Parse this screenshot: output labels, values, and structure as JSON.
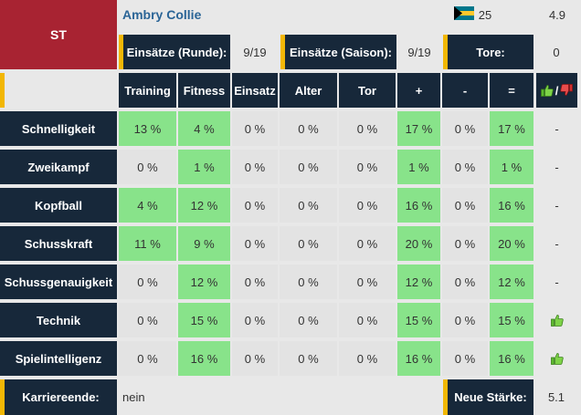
{
  "position": "ST",
  "player": {
    "name": "Ambry Collie",
    "flag": "bahamas-flag",
    "age": "25",
    "rating": "4.9"
  },
  "stats": {
    "round_label": "Einsätze (Runde):",
    "round_value": "9/19",
    "season_label": "Einsätze (Saison):",
    "season_value": "9/19",
    "goals_label": "Tore:",
    "goals_value": "0"
  },
  "columns": [
    "Training",
    "Fitness",
    "Einsatz",
    "Alter",
    "Tor",
    "+",
    "-",
    "="
  ],
  "thumbs_header_sep": "/",
  "rows": [
    {
      "label": "Schnelligkeit",
      "values": [
        "13 %",
        "4 %",
        "0 %",
        "0 %",
        "0 %",
        "17 %",
        "0 %",
        "17 %"
      ],
      "status": "-"
    },
    {
      "label": "Zweikampf",
      "values": [
        "0 %",
        "1 %",
        "0 %",
        "0 %",
        "0 %",
        "1 %",
        "0 %",
        "1 %"
      ],
      "status": "-"
    },
    {
      "label": "Kopfball",
      "values": [
        "4 %",
        "12 %",
        "0 %",
        "0 %",
        "0 %",
        "16 %",
        "0 %",
        "16 %"
      ],
      "status": "-"
    },
    {
      "label": "Schusskraft",
      "values": [
        "11 %",
        "9 %",
        "0 %",
        "0 %",
        "0 %",
        "20 %",
        "0 %",
        "20 %"
      ],
      "status": "-"
    },
    {
      "label": "Schussgenauigkeit",
      "values": [
        "0 %",
        "12 %",
        "0 %",
        "0 %",
        "0 %",
        "12 %",
        "0 %",
        "12 %"
      ],
      "status": "-"
    },
    {
      "label": "Technik",
      "values": [
        "0 %",
        "15 %",
        "0 %",
        "0 %",
        "0 %",
        "15 %",
        "0 %",
        "15 %"
      ],
      "status": "thumbs-up"
    },
    {
      "label": "Spielintelligenz",
      "values": [
        "0 %",
        "16 %",
        "0 %",
        "0 %",
        "0 %",
        "16 %",
        "0 %",
        "16 %"
      ],
      "status": "thumbs-up"
    }
  ],
  "footer": {
    "career_label": "Karriereende:",
    "career_value": "nein",
    "strength_label": "Neue Stärke:",
    "strength_value": "5.1"
  },
  "colors": {
    "position_bg": "#a82332",
    "dark": "#17283a",
    "accent": "#f2b705",
    "green": "#88e38a",
    "grey": "#e3e3e3"
  }
}
